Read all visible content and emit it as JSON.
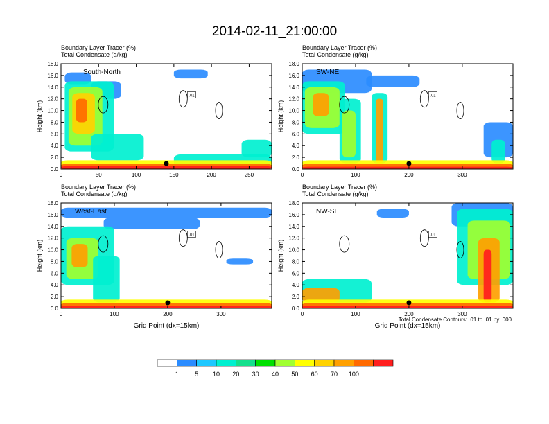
{
  "figure": {
    "title": "2014-02-11_21:00:00",
    "panel_subtitle_line1": "Boundary Layer Tracer   (%)",
    "panel_subtitle_line2": "Total Condensate   (g/kg)",
    "contour_note": "Total Condensate Contours: .01 to .01 by .000"
  },
  "colorbar": {
    "labels": [
      "1",
      "5",
      "10",
      "20",
      "30",
      "40",
      "50",
      "60",
      "70",
      "100"
    ],
    "colors": [
      "#ffffff",
      "#2b8cff",
      "#1ec8ff",
      "#00f0d0",
      "#14e08c",
      "#00e000",
      "#a0ff30",
      "#ffff00",
      "#ffd200",
      "#ffa000",
      "#ff6a00",
      "#ff1e1e"
    ]
  },
  "chart_data": [
    {
      "type": "heatmap",
      "panel": "South-North",
      "title": "South-North",
      "subtitle": [
        "Boundary Layer Tracer   (%)",
        "Total Condensate   (g/kg)"
      ],
      "xlabel": "",
      "ylabel": "Height (km)",
      "xlim": [
        0,
        280
      ],
      "ylim": [
        0,
        18
      ],
      "xticks": [
        0,
        50,
        100,
        150,
        200,
        250
      ],
      "yticks": [
        "0.0",
        "2.0",
        "4.0",
        "6.0",
        "8.0",
        "10.0",
        "12.0",
        "14.0",
        "16.0",
        "18.0"
      ],
      "marker_x": 140,
      "contour_label": ".01"
    },
    {
      "type": "heatmap",
      "panel": "SW-NE",
      "title": "SW-NE",
      "subtitle": [
        "Boundary Layer Tracer   (%)",
        "Total Condensate   (g/kg)"
      ],
      "xlabel": "",
      "ylabel": "Height (km)",
      "xlim": [
        0,
        395
      ],
      "ylim": [
        0,
        18
      ],
      "xticks": [
        0,
        100,
        200,
        300
      ],
      "yticks": [
        "0.0",
        "2.0",
        "4.0",
        "6.0",
        "8.0",
        "10.0",
        "12.0",
        "14.0",
        "16.0",
        "18.0"
      ],
      "marker_x": 200,
      "contour_label": ".01"
    },
    {
      "type": "heatmap",
      "panel": "West-East",
      "title": "West-East",
      "subtitle": [
        "Boundary Layer Tracer   (%)",
        "Total Condensate   (g/kg)"
      ],
      "xlabel": "Grid Point (dx=15km)",
      "ylabel": "Height (km)",
      "xlim": [
        0,
        395
      ],
      "ylim": [
        0,
        18
      ],
      "xticks": [
        0,
        100,
        200,
        300
      ],
      "yticks": [
        "0.0",
        "2.0",
        "4.0",
        "6.0",
        "8.0",
        "10.0",
        "12.0",
        "14.0",
        "16.0",
        "18.0"
      ],
      "marker_x": 200,
      "contour_label": ".01"
    },
    {
      "type": "heatmap",
      "panel": "NW-SE",
      "title": "NW-SE",
      "subtitle": [
        "Boundary Layer Tracer   (%)",
        "Total Condensate   (g/kg)"
      ],
      "xlabel": "Grid Point (dx=15km)",
      "ylabel": "Height (km)",
      "xlim": [
        0,
        395
      ],
      "ylim": [
        0,
        18
      ],
      "xticks": [
        0,
        100,
        200,
        300
      ],
      "yticks": [
        "0.0",
        "2.0",
        "4.0",
        "6.0",
        "8.0",
        "10.0",
        "12.0",
        "14.0",
        "16.0",
        "18.0"
      ],
      "marker_x": 200,
      "contour_label": ".01"
    }
  ]
}
